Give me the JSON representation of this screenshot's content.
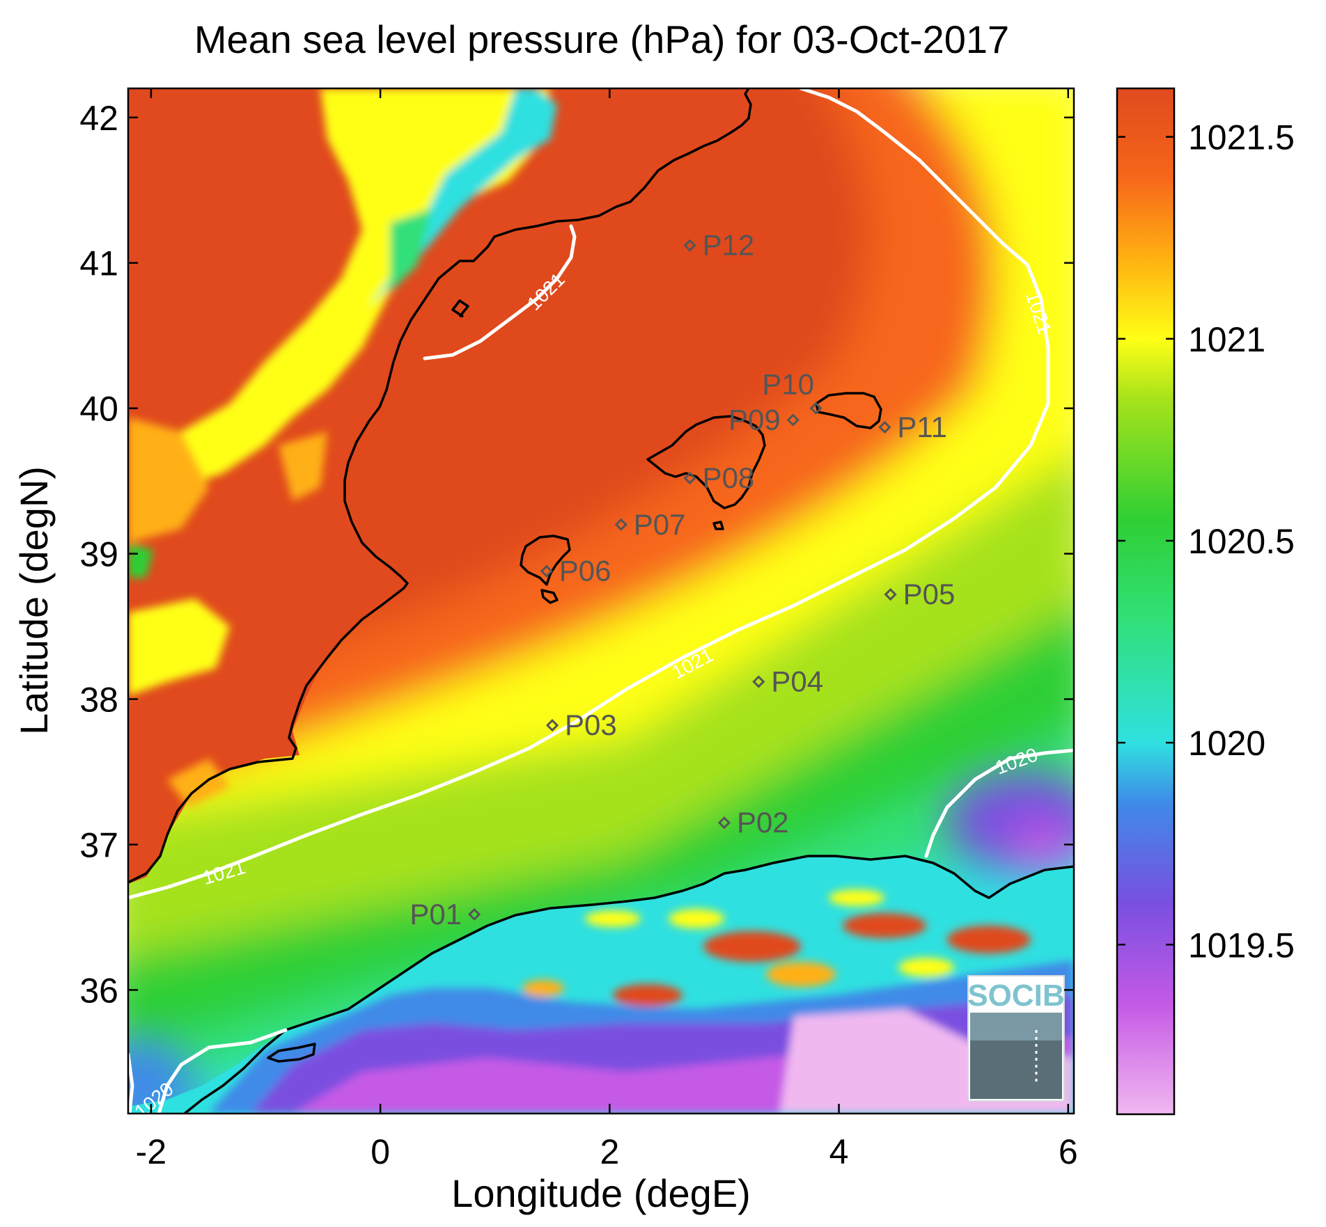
{
  "title": "Mean sea level pressure (hPa) for 03-Oct-2017",
  "x_axis": {
    "label": "Longitude (degE)",
    "range": [
      -2.2,
      6.05
    ],
    "ticks": [
      {
        "value": -2,
        "label": "-2"
      },
      {
        "value": 0,
        "label": "0"
      },
      {
        "value": 2,
        "label": "2"
      },
      {
        "value": 4,
        "label": "4"
      },
      {
        "value": 6,
        "label": "6"
      }
    ]
  },
  "y_axis": {
    "label": "Latitude (degN)",
    "range": [
      35.15,
      42.2
    ],
    "ticks": [
      {
        "value": 36,
        "label": "36"
      },
      {
        "value": 37,
        "label": "37"
      },
      {
        "value": 38,
        "label": "38"
      },
      {
        "value": 39,
        "label": "39"
      },
      {
        "value": 40,
        "label": "40"
      },
      {
        "value": 41,
        "label": "41"
      },
      {
        "value": 42,
        "label": "42"
      }
    ]
  },
  "colorbar": {
    "range": [
      1019.08,
      1021.62
    ],
    "ticks": [
      {
        "value": 1019.5,
        "label": "1019.5"
      },
      {
        "value": 1020,
        "label": "1020"
      },
      {
        "value": 1020.5,
        "label": "1020.5"
      },
      {
        "value": 1021,
        "label": "1021"
      },
      {
        "value": 1021.5,
        "label": "1021.5"
      }
    ],
    "stops": [
      {
        "value": 1019.08,
        "color": "#f1b8f0"
      },
      {
        "value": 1019.35,
        "color": "#c55ae6"
      },
      {
        "value": 1019.6,
        "color": "#7a4fe0"
      },
      {
        "value": 1019.85,
        "color": "#3f8ae8"
      },
      {
        "value": 1020.0,
        "color": "#2fe0e0"
      },
      {
        "value": 1020.3,
        "color": "#31e07a"
      },
      {
        "value": 1020.55,
        "color": "#2fcf34"
      },
      {
        "value": 1020.85,
        "color": "#a6e21c"
      },
      {
        "value": 1021.0,
        "color": "#ffff15"
      },
      {
        "value": 1021.2,
        "color": "#ffb012"
      },
      {
        "value": 1021.4,
        "color": "#f7661a"
      },
      {
        "value": 1021.62,
        "color": "#e04a1e"
      }
    ]
  },
  "contours": [
    {
      "label": "1021"
    },
    {
      "label": "1021"
    },
    {
      "label": "1021"
    },
    {
      "label": "1021"
    },
    {
      "label": "1020"
    },
    {
      "label": "1020"
    }
  ],
  "stations": [
    {
      "id": "P01",
      "lon": 0.82,
      "lat": 36.52
    },
    {
      "id": "P02",
      "lon": 3.0,
      "lat": 37.15
    },
    {
      "id": "P03",
      "lon": 1.5,
      "lat": 37.82
    },
    {
      "id": "P04",
      "lon": 3.3,
      "lat": 38.12
    },
    {
      "id": "P05",
      "lon": 4.45,
      "lat": 38.72
    },
    {
      "id": "P06",
      "lon": 1.45,
      "lat": 38.88
    },
    {
      "id": "P07",
      "lon": 2.1,
      "lat": 39.2
    },
    {
      "id": "P08",
      "lon": 2.7,
      "lat": 39.52
    },
    {
      "id": "P09",
      "lon": 3.6,
      "lat": 39.92
    },
    {
      "id": "P10",
      "lon": 3.8,
      "lat": 40.0
    },
    {
      "id": "P11",
      "lon": 4.4,
      "lat": 39.87
    },
    {
      "id": "P12",
      "lon": 2.7,
      "lat": 41.12
    }
  ],
  "logo": {
    "text": "SOCIB"
  },
  "colors": {
    "contour": "#ffffff",
    "coastline": "#000000",
    "station": "#555555"
  }
}
